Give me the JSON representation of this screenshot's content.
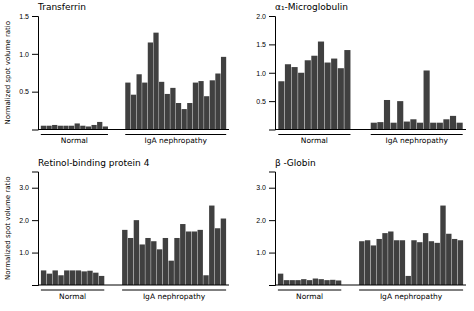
{
  "chart_data": [
    {
      "type": "bar",
      "title": "Transferrin",
      "ylabel": "Normalized spot volume ratio",
      "series": [
        {
          "name": "Normal",
          "color": "#404040",
          "values": [
            0.05,
            0.05,
            0.06,
            0.05,
            0.05,
            0.05,
            0.08,
            0.05,
            0.04,
            0.06,
            0.1,
            0.04
          ]
        },
        {
          "name": "IgA nephropathy",
          "color": "#404040",
          "values": [
            0.62,
            0.46,
            0.73,
            0.62,
            1.15,
            1.28,
            0.63,
            0.47,
            0.55,
            0.35,
            0.27,
            0.35,
            0.62,
            0.64,
            0.44,
            0.65,
            0.74,
            0.96
          ]
        }
      ],
      "ylim": [
        0,
        1.5
      ],
      "yticks": [
        0.5,
        {
          "value": 1.0,
          "label": "1.0"
        },
        1.5
      ],
      "grid": false
    },
    {
      "type": "bar",
      "title": "α₁-Microglobulin",
      "series": [
        {
          "name": "Normal",
          "color": "#404040",
          "values": [
            0.85,
            1.15,
            1.1,
            1.0,
            1.22,
            1.3,
            1.55,
            1.18,
            1.25,
            1.08,
            1.4
          ]
        },
        {
          "name": "IgA nephropathy",
          "color": "#404040",
          "values": [
            0.12,
            0.13,
            0.52,
            0.12,
            0.5,
            0.14,
            0.18,
            0.12,
            1.04,
            0.12,
            0.12,
            0.18,
            0.24,
            0.12
          ]
        }
      ],
      "ylim": [
        0,
        2.0
      ],
      "yticks": [
        0.5,
        {
          "value": 1.0,
          "label": "1.0"
        },
        1.5,
        {
          "value": 2.0,
          "label": "2.0"
        }
      ],
      "grid": false
    },
    {
      "type": "bar",
      "title": "Retinol-binding protein 4",
      "ylabel": "Normalized spot volume ratio",
      "series": [
        {
          "name": "Normal",
          "color": "#404040",
          "values": [
            0.45,
            0.35,
            0.45,
            0.3,
            0.45,
            0.45,
            0.45,
            0.42,
            0.44,
            0.38,
            0.28
          ]
        },
        {
          "name": "IgA nephropathy",
          "color": "#404040",
          "values": [
            1.7,
            1.45,
            2.0,
            1.25,
            1.45,
            1.35,
            1.1,
            1.45,
            0.75,
            1.45,
            1.88,
            1.65,
            1.65,
            1.7,
            0.3,
            2.45,
            1.75,
            2.05
          ]
        }
      ],
      "ylim": [
        0,
        3.5
      ],
      "yticks": [
        {
          "value": 1.0,
          "label": "1.0"
        },
        {
          "value": 2.0,
          "label": "2.0"
        },
        {
          "value": 3.0,
          "label": "3.0"
        }
      ],
      "grid": false
    },
    {
      "type": "bar",
      "title": "β -Globin",
      "series": [
        {
          "name": "Normal",
          "color": "#404040",
          "values": [
            0.35,
            0.15,
            0.15,
            0.15,
            0.18,
            0.15,
            0.2,
            0.18,
            0.15,
            0.16,
            0.14
          ]
        },
        {
          "name": "IgA nephropathy",
          "color": "#404040",
          "values": [
            1.35,
            1.38,
            1.22,
            1.42,
            1.6,
            1.65,
            1.38,
            1.38,
            0.28,
            1.38,
            1.32,
            1.6,
            1.35,
            1.3,
            2.45,
            1.58,
            1.42,
            1.38
          ]
        }
      ],
      "ylim": [
        0,
        3.5
      ],
      "yticks": [
        {
          "value": 1.0,
          "label": "1.0"
        },
        {
          "value": 2.0,
          "label": "2.0"
        },
        {
          "value": 3.0,
          "label": "3.0"
        }
      ],
      "grid": false
    }
  ]
}
